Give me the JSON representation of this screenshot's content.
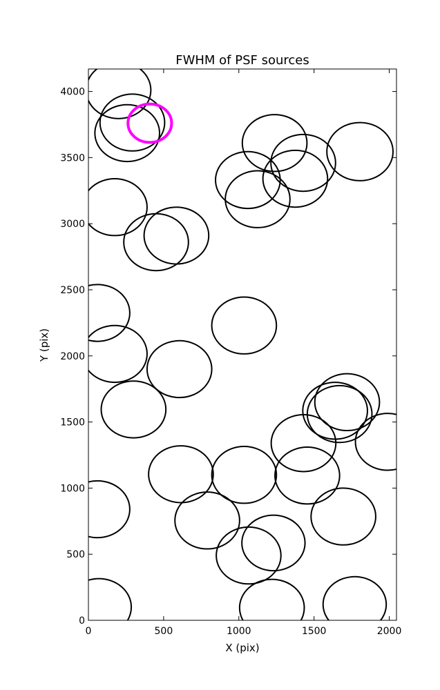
{
  "chart_data": {
    "type": "scatter",
    "title": "FWHM of PSF sources",
    "xlabel": "X (pix)",
    "ylabel": "Y (pix)",
    "xlim": [
      0,
      2048
    ],
    "ylim": [
      0,
      4170
    ],
    "xticks": [
      0,
      500,
      1000,
      1500,
      2000
    ],
    "yticks": [
      0,
      500,
      1000,
      1500,
      2000,
      2500,
      3000,
      3500,
      4000
    ],
    "grid": false,
    "legend": "none",
    "colors": {
      "source": "#000000",
      "highlight": "#ff00ff"
    },
    "sources": [
      {
        "x": 200,
        "y": 4010,
        "r": 215
      },
      {
        "x": 292,
        "y": 3765,
        "r": 215
      },
      {
        "x": 258,
        "y": 3685,
        "r": 215
      },
      {
        "x": 1238,
        "y": 3610,
        "r": 215
      },
      {
        "x": 1428,
        "y": 3460,
        "r": 215
      },
      {
        "x": 1805,
        "y": 3545,
        "r": 220
      },
      {
        "x": 1375,
        "y": 3340,
        "r": 215
      },
      {
        "x": 1060,
        "y": 3330,
        "r": 215
      },
      {
        "x": 1125,
        "y": 3185,
        "r": 215
      },
      {
        "x": 175,
        "y": 3125,
        "r": 215
      },
      {
        "x": 585,
        "y": 2910,
        "r": 215
      },
      {
        "x": 450,
        "y": 2860,
        "r": 215
      },
      {
        "x": 60,
        "y": 2325,
        "r": 215
      },
      {
        "x": 1035,
        "y": 2230,
        "r": 215
      },
      {
        "x": 175,
        "y": 2015,
        "r": 215
      },
      {
        "x": 605,
        "y": 1900,
        "r": 215
      },
      {
        "x": 1720,
        "y": 1650,
        "r": 215
      },
      {
        "x": 1640,
        "y": 1585,
        "r": 215
      },
      {
        "x": 1670,
        "y": 1560,
        "r": 215
      },
      {
        "x": 300,
        "y": 1595,
        "r": 215
      },
      {
        "x": 1430,
        "y": 1340,
        "r": 215
      },
      {
        "x": 1990,
        "y": 1350,
        "r": 215
      },
      {
        "x": 615,
        "y": 1105,
        "r": 215
      },
      {
        "x": 1035,
        "y": 1100,
        "r": 215
      },
      {
        "x": 1455,
        "y": 1095,
        "r": 215
      },
      {
        "x": 60,
        "y": 840,
        "r": 215
      },
      {
        "x": 790,
        "y": 755,
        "r": 215
      },
      {
        "x": 1695,
        "y": 785,
        "r": 215
      },
      {
        "x": 1230,
        "y": 585,
        "r": 210
      },
      {
        "x": 1065,
        "y": 490,
        "r": 215
      },
      {
        "x": 70,
        "y": 100,
        "r": 215
      },
      {
        "x": 1220,
        "y": 95,
        "r": 215
      },
      {
        "x": 1770,
        "y": 120,
        "r": 210
      }
    ],
    "highlight": {
      "x": 408,
      "y": 3760,
      "r": 145
    }
  }
}
